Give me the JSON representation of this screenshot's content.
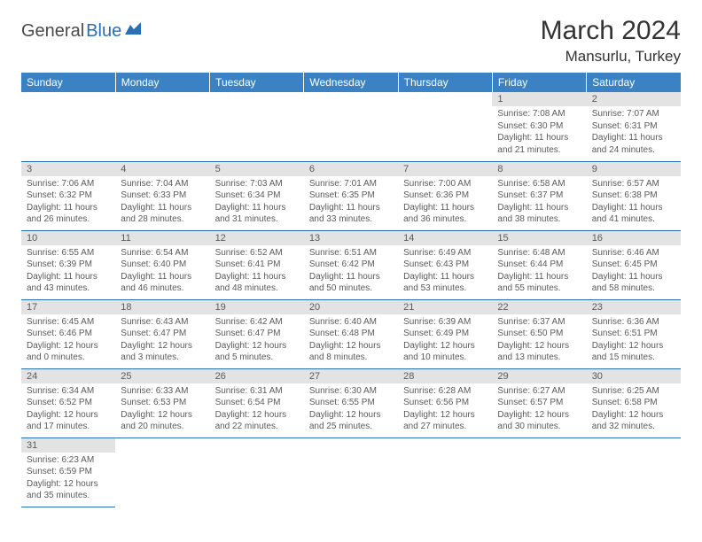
{
  "brand": {
    "part1": "General",
    "part2": "Blue"
  },
  "title": "March 2024",
  "location": "Mansurlu, Turkey",
  "colors": {
    "header_bg": "#3b82c4",
    "header_text": "#ffffff",
    "daynum_bg": "#e3e3e3",
    "text": "#5a5a5a",
    "rule": "#2a6fb5",
    "brand_blue": "#2a6fb5",
    "brand_gray": "#4a4a4a",
    "page_bg": "#ffffff"
  },
  "dow": [
    "Sunday",
    "Monday",
    "Tuesday",
    "Wednesday",
    "Thursday",
    "Friday",
    "Saturday"
  ],
  "weeks": [
    [
      null,
      null,
      null,
      null,
      null,
      {
        "n": "1",
        "sr": "Sunrise: 7:08 AM",
        "ss": "Sunset: 6:30 PM",
        "dl": "Daylight: 11 hours and 21 minutes."
      },
      {
        "n": "2",
        "sr": "Sunrise: 7:07 AM",
        "ss": "Sunset: 6:31 PM",
        "dl": "Daylight: 11 hours and 24 minutes."
      }
    ],
    [
      {
        "n": "3",
        "sr": "Sunrise: 7:06 AM",
        "ss": "Sunset: 6:32 PM",
        "dl": "Daylight: 11 hours and 26 minutes."
      },
      {
        "n": "4",
        "sr": "Sunrise: 7:04 AM",
        "ss": "Sunset: 6:33 PM",
        "dl": "Daylight: 11 hours and 28 minutes."
      },
      {
        "n": "5",
        "sr": "Sunrise: 7:03 AM",
        "ss": "Sunset: 6:34 PM",
        "dl": "Daylight: 11 hours and 31 minutes."
      },
      {
        "n": "6",
        "sr": "Sunrise: 7:01 AM",
        "ss": "Sunset: 6:35 PM",
        "dl": "Daylight: 11 hours and 33 minutes."
      },
      {
        "n": "7",
        "sr": "Sunrise: 7:00 AM",
        "ss": "Sunset: 6:36 PM",
        "dl": "Daylight: 11 hours and 36 minutes."
      },
      {
        "n": "8",
        "sr": "Sunrise: 6:58 AM",
        "ss": "Sunset: 6:37 PM",
        "dl": "Daylight: 11 hours and 38 minutes."
      },
      {
        "n": "9",
        "sr": "Sunrise: 6:57 AM",
        "ss": "Sunset: 6:38 PM",
        "dl": "Daylight: 11 hours and 41 minutes."
      }
    ],
    [
      {
        "n": "10",
        "sr": "Sunrise: 6:55 AM",
        "ss": "Sunset: 6:39 PM",
        "dl": "Daylight: 11 hours and 43 minutes."
      },
      {
        "n": "11",
        "sr": "Sunrise: 6:54 AM",
        "ss": "Sunset: 6:40 PM",
        "dl": "Daylight: 11 hours and 46 minutes."
      },
      {
        "n": "12",
        "sr": "Sunrise: 6:52 AM",
        "ss": "Sunset: 6:41 PM",
        "dl": "Daylight: 11 hours and 48 minutes."
      },
      {
        "n": "13",
        "sr": "Sunrise: 6:51 AM",
        "ss": "Sunset: 6:42 PM",
        "dl": "Daylight: 11 hours and 50 minutes."
      },
      {
        "n": "14",
        "sr": "Sunrise: 6:49 AM",
        "ss": "Sunset: 6:43 PM",
        "dl": "Daylight: 11 hours and 53 minutes."
      },
      {
        "n": "15",
        "sr": "Sunrise: 6:48 AM",
        "ss": "Sunset: 6:44 PM",
        "dl": "Daylight: 11 hours and 55 minutes."
      },
      {
        "n": "16",
        "sr": "Sunrise: 6:46 AM",
        "ss": "Sunset: 6:45 PM",
        "dl": "Daylight: 11 hours and 58 minutes."
      }
    ],
    [
      {
        "n": "17",
        "sr": "Sunrise: 6:45 AM",
        "ss": "Sunset: 6:46 PM",
        "dl": "Daylight: 12 hours and 0 minutes."
      },
      {
        "n": "18",
        "sr": "Sunrise: 6:43 AM",
        "ss": "Sunset: 6:47 PM",
        "dl": "Daylight: 12 hours and 3 minutes."
      },
      {
        "n": "19",
        "sr": "Sunrise: 6:42 AM",
        "ss": "Sunset: 6:47 PM",
        "dl": "Daylight: 12 hours and 5 minutes."
      },
      {
        "n": "20",
        "sr": "Sunrise: 6:40 AM",
        "ss": "Sunset: 6:48 PM",
        "dl": "Daylight: 12 hours and 8 minutes."
      },
      {
        "n": "21",
        "sr": "Sunrise: 6:39 AM",
        "ss": "Sunset: 6:49 PM",
        "dl": "Daylight: 12 hours and 10 minutes."
      },
      {
        "n": "22",
        "sr": "Sunrise: 6:37 AM",
        "ss": "Sunset: 6:50 PM",
        "dl": "Daylight: 12 hours and 13 minutes."
      },
      {
        "n": "23",
        "sr": "Sunrise: 6:36 AM",
        "ss": "Sunset: 6:51 PM",
        "dl": "Daylight: 12 hours and 15 minutes."
      }
    ],
    [
      {
        "n": "24",
        "sr": "Sunrise: 6:34 AM",
        "ss": "Sunset: 6:52 PM",
        "dl": "Daylight: 12 hours and 17 minutes."
      },
      {
        "n": "25",
        "sr": "Sunrise: 6:33 AM",
        "ss": "Sunset: 6:53 PM",
        "dl": "Daylight: 12 hours and 20 minutes."
      },
      {
        "n": "26",
        "sr": "Sunrise: 6:31 AM",
        "ss": "Sunset: 6:54 PM",
        "dl": "Daylight: 12 hours and 22 minutes."
      },
      {
        "n": "27",
        "sr": "Sunrise: 6:30 AM",
        "ss": "Sunset: 6:55 PM",
        "dl": "Daylight: 12 hours and 25 minutes."
      },
      {
        "n": "28",
        "sr": "Sunrise: 6:28 AM",
        "ss": "Sunset: 6:56 PM",
        "dl": "Daylight: 12 hours and 27 minutes."
      },
      {
        "n": "29",
        "sr": "Sunrise: 6:27 AM",
        "ss": "Sunset: 6:57 PM",
        "dl": "Daylight: 12 hours and 30 minutes."
      },
      {
        "n": "30",
        "sr": "Sunrise: 6:25 AM",
        "ss": "Sunset: 6:58 PM",
        "dl": "Daylight: 12 hours and 32 minutes."
      }
    ],
    [
      {
        "n": "31",
        "sr": "Sunrise: 6:23 AM",
        "ss": "Sunset: 6:59 PM",
        "dl": "Daylight: 12 hours and 35 minutes."
      },
      null,
      null,
      null,
      null,
      null,
      null
    ]
  ]
}
